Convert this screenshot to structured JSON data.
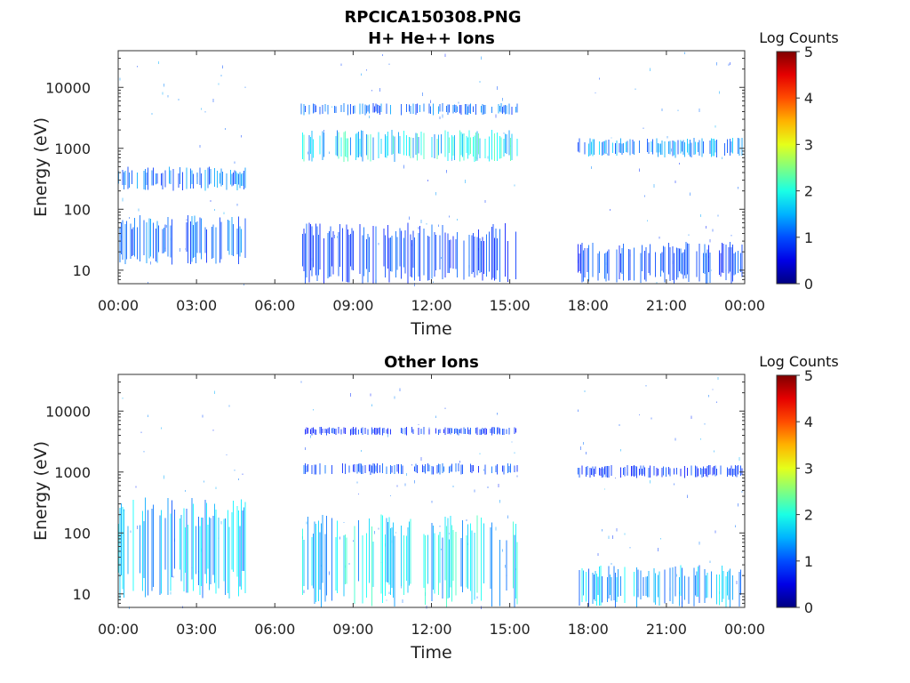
{
  "figure": {
    "title": "RPCICA150308.PNG"
  },
  "chart_data": [
    {
      "type": "heatmap",
      "title": "H+ He++ Ions",
      "xlabel": "Time",
      "ylabel": "Energy (eV)",
      "x_ticks": [
        "00:00",
        "03:00",
        "06:00",
        "09:00",
        "12:00",
        "15:00",
        "18:00",
        "21:00",
        "00:00"
      ],
      "x_range_hours": [
        0,
        24
      ],
      "y_scale": "log",
      "y_ticks": [
        "10",
        "100",
        "1000",
        "10000"
      ],
      "y_tick_values": [
        10,
        100,
        1000,
        10000
      ],
      "y_range": [
        6,
        40000
      ],
      "colorbar": {
        "label": "Log Counts",
        "ticks": [
          "0",
          "1",
          "2",
          "3",
          "4",
          "5"
        ],
        "range": [
          0,
          5
        ],
        "colormap": "jet"
      },
      "data_segments_hours": [
        [
          0.0,
          4.9
        ],
        [
          7.0,
          15.3
        ],
        [
          17.6,
          23.9
        ]
      ],
      "features": [
        {
          "segment": 0,
          "e_low": 200,
          "e_high": 500,
          "level": 0.9
        },
        {
          "segment": 0,
          "e_low": 12,
          "e_high": 80,
          "level": 0.8
        },
        {
          "segment": 1,
          "e_low": 600,
          "e_high": 2000,
          "level": 1.5
        },
        {
          "segment": 1,
          "e_low": 3500,
          "e_high": 5500,
          "level": 0.8
        },
        {
          "segment": 1,
          "e_low": 6,
          "e_high": 60,
          "level": 0.6
        },
        {
          "segment": 2,
          "e_low": 700,
          "e_high": 1500,
          "level": 1.0
        },
        {
          "segment": 2,
          "e_low": 6,
          "e_high": 30,
          "level": 0.6
        }
      ]
    },
    {
      "type": "heatmap",
      "title": "Other Ions",
      "xlabel": "Time",
      "ylabel": "Energy (eV)",
      "x_ticks": [
        "00:00",
        "03:00",
        "06:00",
        "09:00",
        "12:00",
        "15:00",
        "18:00",
        "21:00",
        "00:00"
      ],
      "x_range_hours": [
        0,
        24
      ],
      "y_scale": "log",
      "y_ticks": [
        "10",
        "100",
        "1000",
        "10000"
      ],
      "y_tick_values": [
        10,
        100,
        1000,
        10000
      ],
      "y_range": [
        6,
        40000
      ],
      "colorbar": {
        "label": "Log Counts",
        "ticks": [
          "0",
          "1",
          "2",
          "3",
          "4",
          "5"
        ],
        "range": [
          0,
          5
        ],
        "colormap": "jet"
      },
      "data_segments_hours": [
        [
          0.0,
          4.9
        ],
        [
          7.0,
          15.3
        ],
        [
          17.6,
          23.9
        ]
      ],
      "features": [
        {
          "segment": 0,
          "e_low": 8,
          "e_high": 400,
          "level": 1.2
        },
        {
          "segment": 1,
          "e_low": 6,
          "e_high": 200,
          "level": 1.4
        },
        {
          "segment": 1,
          "e_low": 900,
          "e_high": 1400,
          "level": 0.6
        },
        {
          "segment": 1,
          "e_low": 4000,
          "e_high": 5500,
          "level": 0.5
        },
        {
          "segment": 2,
          "e_low": 6,
          "e_high": 30,
          "level": 1.2
        },
        {
          "segment": 2,
          "e_low": 800,
          "e_high": 1300,
          "level": 0.5
        }
      ]
    }
  ]
}
